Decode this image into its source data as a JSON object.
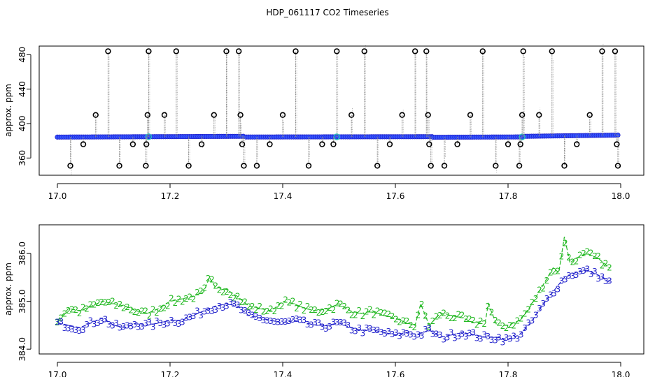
{
  "title": "HDP_061117  CO2 Timeseries",
  "colors": {
    "outlier": "#000000",
    "raw_line": "#888888",
    "series1": "#2222cc",
    "series1_fill": "#3355ff",
    "series2": "#22b822",
    "teal": "#20c0c0"
  },
  "chart_data": [
    {
      "type": "scatter",
      "title": "",
      "xlabel": "",
      "ylabel": "approx. ppm",
      "xlim": [
        17.0,
        18.0
      ],
      "ylim": [
        340,
        490
      ],
      "x_ticks": [
        17.0,
        17.2,
        17.4,
        17.6,
        17.8,
        18.0
      ],
      "x_tick_labels": [
        "17.0",
        "17.2",
        "17.4",
        "17.6",
        "17.8",
        "18.0"
      ],
      "y_ticks": [
        360,
        400,
        440,
        480
      ],
      "y_tick_labels": [
        "360",
        "400",
        "440",
        "480"
      ],
      "baseline_segments": [
        {
          "x": [
            17.0,
            17.33
          ],
          "y": [
            384.3,
            385.2
          ]
        },
        {
          "x": [
            17.335,
            17.665
          ],
          "y": [
            384.4,
            384.8
          ]
        },
        {
          "x": [
            17.667,
            17.825
          ],
          "y": [
            384.1,
            384.5
          ]
        },
        {
          "x": [
            17.83,
            17.995
          ],
          "y": [
            385.2,
            386.6
          ]
        }
      ],
      "outliers": [
        {
          "x": 17.023,
          "y": 351
        },
        {
          "x": 17.046,
          "y": 376
        },
        {
          "x": 17.068,
          "y": 410
        },
        {
          "x": 17.09,
          "y": 484
        },
        {
          "x": 17.11,
          "y": 351
        },
        {
          "x": 17.134,
          "y": 376
        },
        {
          "x": 17.157,
          "y": 351
        },
        {
          "x": 17.158,
          "y": 376
        },
        {
          "x": 17.16,
          "y": 410
        },
        {
          "x": 17.162,
          "y": 484
        },
        {
          "x": 17.19,
          "y": 410
        },
        {
          "x": 17.211,
          "y": 484
        },
        {
          "x": 17.233,
          "y": 351
        },
        {
          "x": 17.256,
          "y": 376
        },
        {
          "x": 17.278,
          "y": 410
        },
        {
          "x": 17.3,
          "y": 484
        },
        {
          "x": 17.322,
          "y": 484
        },
        {
          "x": 17.325,
          "y": 410
        },
        {
          "x": 17.328,
          "y": 376
        },
        {
          "x": 17.331,
          "y": 351
        },
        {
          "x": 17.354,
          "y": 351
        },
        {
          "x": 17.377,
          "y": 376
        },
        {
          "x": 17.4,
          "y": 410
        },
        {
          "x": 17.423,
          "y": 484
        },
        {
          "x": 17.446,
          "y": 351
        },
        {
          "x": 17.47,
          "y": 376
        },
        {
          "x": 17.49,
          "y": 376
        },
        {
          "x": 17.496,
          "y": 484
        },
        {
          "x": 17.522,
          "y": 410
        },
        {
          "x": 17.545,
          "y": 484
        },
        {
          "x": 17.568,
          "y": 351
        },
        {
          "x": 17.59,
          "y": 376
        },
        {
          "x": 17.612,
          "y": 410
        },
        {
          "x": 17.635,
          "y": 484
        },
        {
          "x": 17.655,
          "y": 484
        },
        {
          "x": 17.658,
          "y": 410
        },
        {
          "x": 17.66,
          "y": 376
        },
        {
          "x": 17.663,
          "y": 351
        },
        {
          "x": 17.687,
          "y": 351
        },
        {
          "x": 17.71,
          "y": 376
        },
        {
          "x": 17.733,
          "y": 410
        },
        {
          "x": 17.755,
          "y": 484
        },
        {
          "x": 17.778,
          "y": 351
        },
        {
          "x": 17.8,
          "y": 376
        },
        {
          "x": 17.82,
          "y": 351
        },
        {
          "x": 17.822,
          "y": 376
        },
        {
          "x": 17.825,
          "y": 410
        },
        {
          "x": 17.827,
          "y": 484
        },
        {
          "x": 17.855,
          "y": 410
        },
        {
          "x": 17.878,
          "y": 484
        },
        {
          "x": 17.9,
          "y": 351
        },
        {
          "x": 17.922,
          "y": 376
        },
        {
          "x": 17.945,
          "y": 410
        },
        {
          "x": 17.967,
          "y": 484
        },
        {
          "x": 17.99,
          "y": 484
        },
        {
          "x": 17.993,
          "y": 376
        },
        {
          "x": 17.995,
          "y": 351
        }
      ]
    },
    {
      "type": "line",
      "title": "",
      "xlabel": "",
      "ylabel": "approx. ppm",
      "xlim": [
        17.0,
        18.0
      ],
      "ylim": [
        383.9,
        386.6
      ],
      "x_ticks": [
        17.0,
        17.2,
        17.4,
        17.6,
        17.8,
        18.0
      ],
      "x_tick_labels": [
        "17.0",
        "17.2",
        "17.4",
        "17.6",
        "17.8",
        "18.0"
      ],
      "y_ticks": [
        384.0,
        385.0,
        386.0
      ],
      "y_tick_labels": [
        "384.0",
        "385.0",
        "386.0"
      ],
      "series": [
        {
          "marker": "2",
          "x": [
            17.0,
            17.02,
            17.04,
            17.06,
            17.08,
            17.1,
            17.12,
            17.14,
            17.16,
            17.18,
            17.2,
            17.22,
            17.24,
            17.26,
            17.27,
            17.28,
            17.3,
            17.32,
            17.34,
            17.36,
            17.38,
            17.4,
            17.42,
            17.44,
            17.46,
            17.48,
            17.5,
            17.52,
            17.54,
            17.56,
            17.58,
            17.6,
            17.62,
            17.635,
            17.645,
            17.66,
            17.68,
            17.7,
            17.72,
            17.74,
            17.76,
            17.765,
            17.78,
            17.8,
            17.82,
            17.84,
            17.86,
            17.87,
            17.88,
            17.89,
            17.9,
            17.91,
            17.92,
            17.94,
            17.96,
            17.98
          ],
          "y": [
            384.6,
            384.85,
            384.8,
            384.9,
            385.0,
            384.95,
            384.9,
            384.8,
            384.75,
            384.85,
            385.0,
            385.05,
            385.1,
            385.2,
            385.5,
            385.3,
            385.25,
            385.1,
            384.9,
            384.85,
            384.8,
            385.0,
            384.95,
            384.85,
            384.8,
            384.85,
            384.95,
            384.8,
            384.75,
            384.8,
            384.7,
            384.65,
            384.55,
            384.5,
            384.95,
            384.5,
            384.75,
            384.7,
            384.65,
            384.55,
            384.6,
            384.95,
            384.5,
            384.5,
            384.6,
            384.9,
            385.3,
            385.5,
            385.7,
            385.6,
            386.35,
            385.8,
            385.9,
            386.0,
            385.9,
            385.7
          ]
        },
        {
          "marker": "3",
          "x": [
            17.0,
            17.02,
            17.04,
            17.06,
            17.08,
            17.1,
            17.12,
            17.14,
            17.16,
            17.18,
            17.2,
            17.22,
            17.24,
            17.26,
            17.28,
            17.3,
            17.32,
            17.34,
            17.36,
            17.38,
            17.4,
            17.42,
            17.44,
            17.46,
            17.48,
            17.5,
            17.52,
            17.54,
            17.56,
            17.58,
            17.6,
            17.62,
            17.64,
            17.66,
            17.68,
            17.7,
            17.72,
            17.74,
            17.76,
            17.78,
            17.8,
            17.82,
            17.84,
            17.86,
            17.88,
            17.9,
            17.92,
            17.94,
            17.96,
            17.98
          ],
          "y": [
            384.55,
            384.5,
            384.45,
            384.55,
            384.65,
            384.5,
            384.45,
            384.55,
            384.5,
            384.55,
            384.6,
            384.6,
            384.7,
            384.8,
            384.9,
            384.95,
            384.9,
            384.7,
            384.65,
            384.6,
            384.55,
            384.6,
            384.55,
            384.5,
            384.5,
            384.55,
            384.45,
            384.4,
            384.4,
            384.35,
            384.3,
            384.35,
            384.3,
            384.4,
            384.25,
            384.3,
            384.35,
            384.3,
            384.25,
            384.25,
            384.2,
            384.3,
            384.55,
            384.9,
            385.2,
            385.5,
            385.6,
            385.65,
            385.55,
            385.4
          ]
        }
      ]
    }
  ]
}
